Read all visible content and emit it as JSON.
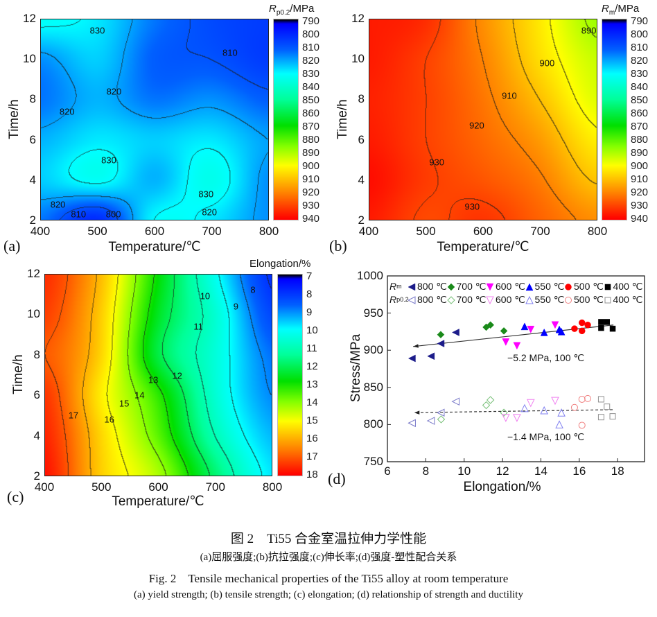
{
  "chart_data": [
    {
      "panel": "(a)",
      "type": "heatmap",
      "xlabel": "Temperature/℃",
      "ylabel": "Time/h",
      "xlim": [
        400,
        800
      ],
      "ylim": [
        2,
        12
      ],
      "xticks": [
        "400",
        "500",
        "600",
        "700",
        "800"
      ],
      "yticks": [
        "2",
        "4",
        "6",
        "8",
        "10",
        "12"
      ],
      "colorbar": {
        "symbol": "R",
        "sub": "p0.2",
        "unit": "/MPa",
        "range": [
          790,
          940
        ],
        "ticks": [
          "790",
          "800",
          "810",
          "820",
          "830",
          "840",
          "850",
          "860",
          "870",
          "880",
          "890",
          "900",
          "910",
          "920",
          "930",
          "940"
        ]
      },
      "contour_step": 10,
      "grid_x": [
        400,
        500,
        600,
        700,
        800
      ],
      "grid_y": [
        12,
        10,
        8,
        6,
        4,
        2
      ],
      "z": [
        [
          832,
          828,
          815,
          808,
          805
        ],
        [
          818,
          825,
          812,
          810,
          805
        ],
        [
          815,
          822,
          815,
          818,
          812
        ],
        [
          822,
          828,
          825,
          828,
          820
        ],
        [
          825,
          832,
          822,
          834,
          818
        ],
        [
          815,
          802,
          830,
          828,
          818
        ]
      ],
      "contour_labels": [
        {
          "text": "830",
          "x": 500,
          "y": 11.4
        },
        {
          "text": "810",
          "x": 732,
          "y": 10.3
        },
        {
          "text": "820",
          "x": 529,
          "y": 8.4
        },
        {
          "text": "820",
          "x": 447,
          "y": 7.4
        },
        {
          "text": "830",
          "x": 520,
          "y": 5.0
        },
        {
          "text": "830",
          "x": 690,
          "y": 3.3
        },
        {
          "text": "820",
          "x": 431,
          "y": 2.8
        },
        {
          "text": "810",
          "x": 467,
          "y": 2.3
        },
        {
          "text": "800",
          "x": 528,
          "y": 2.3
        },
        {
          "text": "820",
          "x": 696,
          "y": 2.4
        }
      ]
    },
    {
      "panel": "(b)",
      "type": "heatmap",
      "xlabel": "Temperature/℃",
      "ylabel": "Time/h",
      "xlim": [
        400,
        800
      ],
      "ylim": [
        2,
        12
      ],
      "xticks": [
        "400",
        "500",
        "600",
        "700",
        "800"
      ],
      "yticks": [
        "2",
        "4",
        "6",
        "8",
        "10",
        "12"
      ],
      "colorbar": {
        "symbol": "R",
        "sub": "m",
        "unit": "/MPa",
        "range": [
          790,
          940
        ],
        "ticks": [
          "790",
          "800",
          "810",
          "820",
          "830",
          "840",
          "850",
          "860",
          "870",
          "880",
          "890",
          "900",
          "910",
          "920",
          "930",
          "940"
        ]
      },
      "contour_step": 10,
      "grid_x": [
        400,
        500,
        600,
        700,
        800
      ],
      "grid_y": [
        12,
        10,
        8,
        6,
        4,
        2
      ],
      "z": [
        [
          936,
          933,
          918,
          903,
          888
        ],
        [
          936,
          930,
          920,
          905,
          893
        ],
        [
          935,
          930,
          922,
          910,
          896
        ],
        [
          936,
          930,
          924,
          916,
          902
        ],
        [
          938,
          931,
          927,
          921,
          909
        ],
        [
          936,
          929,
          932,
          925,
          918
        ]
      ],
      "contour_labels": [
        {
          "text": "890",
          "x": 785,
          "y": 11.4
        },
        {
          "text": "900",
          "x": 712,
          "y": 9.8
        },
        {
          "text": "910",
          "x": 646,
          "y": 8.2
        },
        {
          "text": "920",
          "x": 589,
          "y": 6.7
        },
        {
          "text": "930",
          "x": 519,
          "y": 4.9
        },
        {
          "text": "930",
          "x": 581,
          "y": 2.7
        }
      ]
    },
    {
      "panel": "(c)",
      "type": "heatmap",
      "xlabel": "Temperature/℃",
      "ylabel": "Time/h",
      "xlim": [
        400,
        800
      ],
      "ylim": [
        2,
        12
      ],
      "xticks": [
        "400",
        "500",
        "600",
        "700",
        "800"
      ],
      "yticks": [
        "2",
        "4",
        "6",
        "8",
        "10",
        "12"
      ],
      "colorbar": {
        "symbol": "",
        "sub": "",
        "unit": "Elongation/%",
        "range": [
          7,
          18
        ],
        "ticks": [
          "7",
          "8",
          "9",
          "10",
          "11",
          "12",
          "13",
          "14",
          "15",
          "16",
          "17",
          "18"
        ]
      },
      "contour_step": 1,
      "grid_x": [
        400,
        500,
        600,
        700,
        800
      ],
      "grid_y": [
        12,
        10,
        8,
        6,
        4,
        2
      ],
      "z": [
        [
          17.5,
          15.8,
          12.8,
          10.2,
          7.9
        ],
        [
          17.3,
          15.6,
          12.5,
          10.6,
          8.3
        ],
        [
          17.0,
          15.5,
          12.2,
          10.5,
          8.8
        ],
        [
          17.4,
          15.2,
          13.2,
          10.6,
          9.0
        ],
        [
          17.6,
          15.5,
          13.6,
          11.0,
          9.4
        ],
        [
          17.8,
          15.6,
          14.3,
          11.8,
          9.8
        ]
      ],
      "contour_labels": [
        {
          "text": "8",
          "x": 766,
          "y": 11.2
        },
        {
          "text": "10",
          "x": 682,
          "y": 10.9
        },
        {
          "text": "9",
          "x": 736,
          "y": 10.4
        },
        {
          "text": "11",
          "x": 670,
          "y": 9.4
        },
        {
          "text": "12",
          "x": 633,
          "y": 6.95
        },
        {
          "text": "13",
          "x": 591,
          "y": 6.75
        },
        {
          "text": "14",
          "x": 567,
          "y": 6.0
        },
        {
          "text": "15",
          "x": 540,
          "y": 5.6
        },
        {
          "text": "16",
          "x": 514,
          "y": 4.8
        },
        {
          "text": "17",
          "x": 451,
          "y": 5.0
        }
      ]
    },
    {
      "panel": "(d)",
      "type": "scatter",
      "xlabel": "Elongation/%",
      "ylabel": "Stress/MPa",
      "xlim": [
        6,
        19.4
      ],
      "ylim": [
        750,
        1000
      ],
      "xticks": [
        6,
        8,
        10,
        12,
        14,
        16,
        18
      ],
      "yticks": [
        750,
        800,
        850,
        900,
        950,
        1000
      ],
      "legend": {
        "row1": {
          "symbol": "R",
          "sub": "m"
        },
        "row2": {
          "symbol": "R",
          "sub": "p0.2"
        },
        "placement": "top"
      },
      "series": [
        {
          "group": "Rm",
          "name": "800 ℃",
          "marker": "triangle-left",
          "filled": true,
          "color": "#1c1c8a",
          "x": [
            7.28,
            8.27,
            8.78,
            9.56
          ],
          "y": [
            889,
            892,
            909,
            924
          ]
        },
        {
          "group": "Rm",
          "name": "700 ℃",
          "marker": "diamond",
          "filled": true,
          "color": "#1a8a1a",
          "x": [
            8.78,
            11.15,
            11.37,
            12.07
          ],
          "y": [
            921,
            931,
            934,
            926
          ]
        },
        {
          "group": "Rm",
          "name": "600 ℃",
          "marker": "triangle-down",
          "filled": true,
          "color": "#ff00ff",
          "x": [
            12.17,
            12.75,
            13.47,
            14.74
          ],
          "y": [
            911,
            906,
            928,
            934
          ]
        },
        {
          "group": "Rm",
          "name": "550 ℃",
          "marker": "triangle-up",
          "filled": true,
          "color": "#0000ff",
          "x": [
            13.15,
            14.17,
            14.96,
            15.07
          ],
          "y": [
            932,
            924,
            928,
            925
          ]
        },
        {
          "group": "Rm",
          "name": "500 ℃",
          "marker": "circle",
          "filled": true,
          "color": "#ff0000",
          "x": [
            15.75,
            16.14,
            16.14,
            16.44
          ],
          "y": [
            929,
            937,
            926,
            934
          ]
        },
        {
          "group": "Rm",
          "name": "400 ℃",
          "marker": "square",
          "filled": true,
          "color": "#000000",
          "x": [
            17.14,
            17.44,
            17.14,
            17.74
          ],
          "y": [
            938,
            938,
            930,
            929
          ]
        },
        {
          "group": "Rp0.2",
          "name": "800 ℃",
          "marker": "triangle-left",
          "filled": false,
          "color": "#7878c8",
          "x": [
            7.28,
            8.27,
            8.78,
            9.56
          ],
          "y": [
            802,
            805,
            816,
            831
          ]
        },
        {
          "group": "Rp0.2",
          "name": "700 ℃",
          "marker": "diamond",
          "filled": false,
          "color": "#78c078",
          "x": [
            8.8,
            11.15,
            11.37,
            12.07
          ],
          "y": [
            807,
            826,
            833,
            816
          ]
        },
        {
          "group": "Rp0.2",
          "name": "600 ℃",
          "marker": "triangle-down",
          "filled": false,
          "color": "#f080f0",
          "x": [
            12.17,
            12.75,
            13.47,
            14.74
          ],
          "y": [
            809,
            809,
            829,
            832
          ]
        },
        {
          "group": "Rp0.2",
          "name": "550 ℃",
          "marker": "triangle-up",
          "filled": false,
          "color": "#8080f0",
          "x": [
            13.15,
            14.17,
            14.96,
            15.07
          ],
          "y": [
            822,
            819,
            800,
            816
          ]
        },
        {
          "group": "Rp0.2",
          "name": "500 ℃",
          "marker": "circle",
          "filled": false,
          "color": "#f08080",
          "x": [
            15.75,
            16.14,
            16.14,
            16.44
          ],
          "y": [
            823,
            834,
            799,
            835
          ]
        },
        {
          "group": "Rp0.2",
          "name": "400 ℃",
          "marker": "square",
          "filled": false,
          "color": "#909090",
          "x": [
            17.14,
            17.44,
            17.14,
            17.74
          ],
          "y": [
            834,
            824,
            810,
            811
          ]
        }
      ],
      "trendlines": [
        {
          "x": [
            17.78,
            7.34
          ],
          "y": [
            934,
            905
          ],
          "style": "solid",
          "label": "−5.2 MPa, 100 ℃"
        },
        {
          "x": [
            17.74,
            7.4
          ],
          "y": [
            820,
            816
          ],
          "style": "dashed",
          "label": "−1.4 MPa, 100 ℃"
        }
      ]
    }
  ],
  "colormap": [
    [
      0,
      "#000000"
    ],
    [
      0.02,
      "#0000ff"
    ],
    [
      0.15,
      "#0060ff"
    ],
    [
      0.27,
      "#00ffff"
    ],
    [
      0.4,
      "#00ff99"
    ],
    [
      0.53,
      "#00e000"
    ],
    [
      0.63,
      "#80ff00"
    ],
    [
      0.73,
      "#ffff00"
    ],
    [
      0.87,
      "#ff8000"
    ],
    [
      1,
      "#ff0000"
    ]
  ],
  "caption": {
    "cn_title": "图 2　Ti55 合金室温拉伸力学性能",
    "cn_sub": "(a)屈服强度;(b)抗拉强度;(c)伸长率;(d)强度-塑性配合关系",
    "en_title": "Fig. 2　Tensile mechanical properties of the Ti55 alloy at room temperature",
    "en_sub": "(a) yield strength; (b) tensile strength; (c) elongation; (d) relationship of strength and ductility"
  }
}
